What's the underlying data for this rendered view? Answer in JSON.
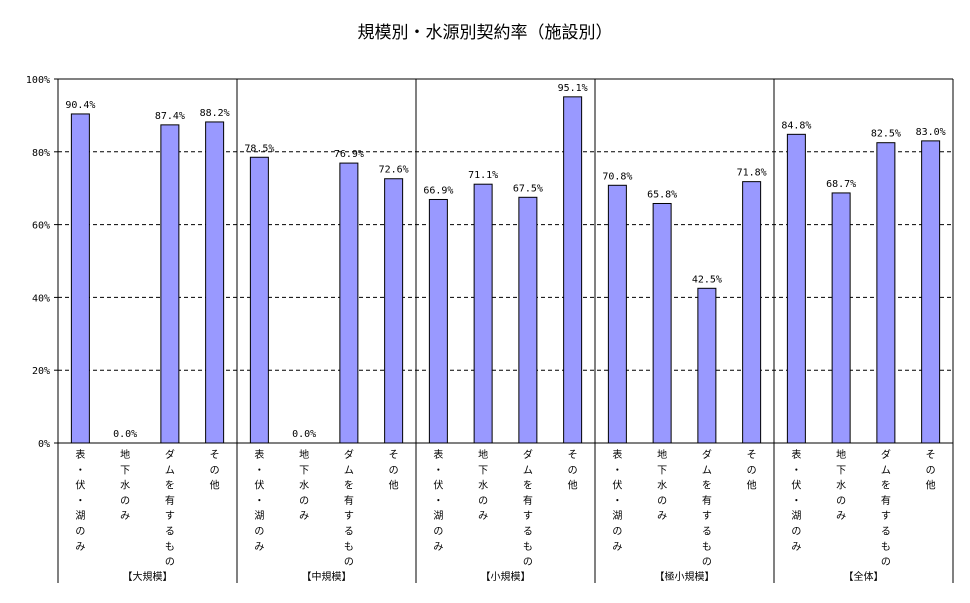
{
  "chart_data": {
    "type": "bar",
    "title": "規模別・水源別契約率（施設別）",
    "ylim": [
      0,
      100
    ],
    "y_ticks": [
      "0%",
      "20%",
      "40%",
      "60%",
      "80%",
      "100%"
    ],
    "grid": "dashed horizontal",
    "bar_color": "#9999ff",
    "categories": [
      "表・伏・湖のみ",
      "地下水のみ",
      "ダムを有するもの",
      "その他"
    ],
    "groups": [
      {
        "name": "【大規模】",
        "values": [
          90.4,
          0.0,
          87.4,
          88.2
        ],
        "labels": [
          "90.4%",
          "0.0%",
          "87.4%",
          "88.2%"
        ]
      },
      {
        "name": "【中規模】",
        "values": [
          78.5,
          0.0,
          76.9,
          72.6
        ],
        "labels": [
          "78.5%",
          "0.0%",
          "76.9%",
          "72.6%"
        ]
      },
      {
        "name": "【小規模】",
        "values": [
          66.9,
          71.1,
          67.5,
          95.1
        ],
        "labels": [
          "66.9%",
          "71.1%",
          "67.5%",
          "95.1%"
        ]
      },
      {
        "name": "【極小規模】",
        "values": [
          70.8,
          65.8,
          42.5,
          71.8
        ],
        "labels": [
          "70.8%",
          "65.8%",
          "42.5%",
          "71.8%"
        ]
      },
      {
        "name": "【全体】",
        "values": [
          84.8,
          68.7,
          82.5,
          83.0
        ],
        "labels": [
          "84.8%",
          "68.7%",
          "82.5%",
          "83.0%"
        ]
      }
    ]
  }
}
